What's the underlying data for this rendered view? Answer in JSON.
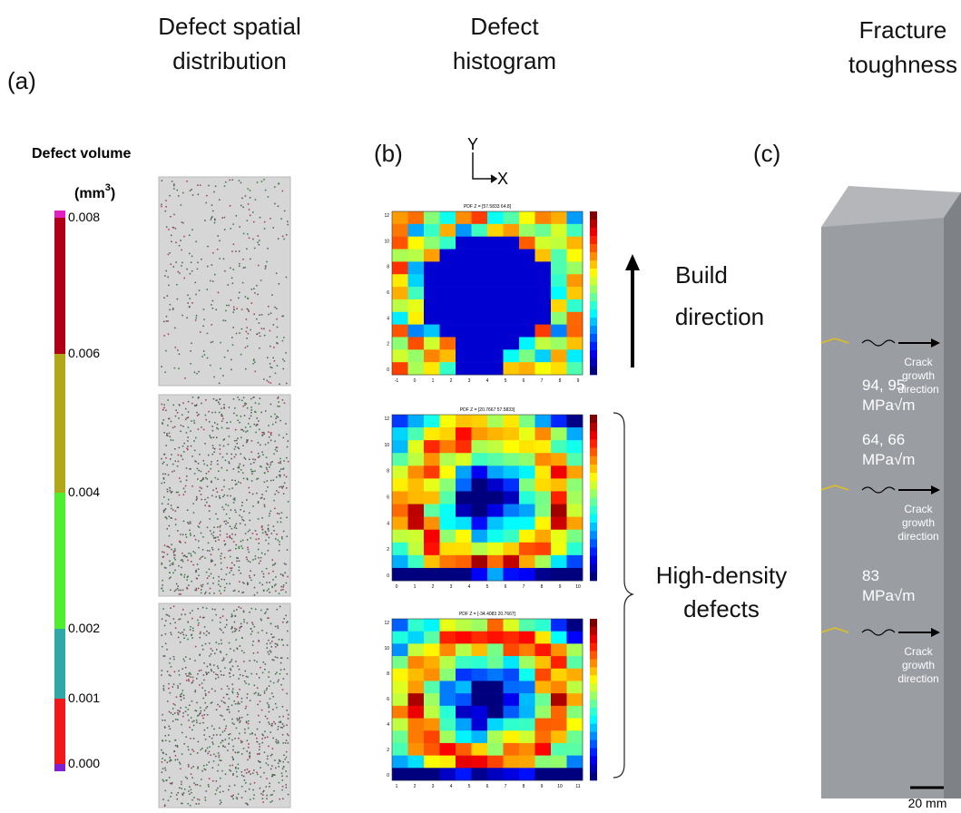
{
  "headers": {
    "a": {
      "line1": "Defect spatial",
      "line2": "distribution"
    },
    "b": {
      "line1": "Defect",
      "line2": "histogram"
    },
    "c": {
      "line1": "Fracture",
      "line2": "toughness"
    }
  },
  "panel_labels": {
    "a": "(a)",
    "b": "(b)",
    "c": "(c)"
  },
  "colorbar": {
    "title": "Defect volume",
    "unit": [
      "(mm",
      "3",
      ")"
    ],
    "labels": [
      "0.008",
      "0.006",
      "0.004",
      "0.002",
      "0.001",
      "0.000"
    ]
  },
  "axes_icon": {
    "y": "Y",
    "x": "X"
  },
  "histograms": [
    {
      "title": "PDF Z = [57.5833 64.8]",
      "xticks": [
        "-1",
        "0",
        "1",
        "2",
        "3",
        "4",
        "5",
        "6",
        "7",
        "8",
        "9"
      ],
      "yticks": [
        "0",
        "2",
        "4",
        "6",
        "8",
        "10",
        "12"
      ]
    },
    {
      "title": "PDF Z = [20.7667 57.5833]",
      "xticks": [
        "0",
        "1",
        "2",
        "3",
        "4",
        "5",
        "6",
        "7",
        "8",
        "9",
        "10"
      ],
      "yticks": [
        "0",
        "2",
        "4",
        "6",
        "8",
        "10",
        "12"
      ]
    },
    {
      "title": "PDF Z = [-34.4083 20.7667]",
      "xticks": [
        "1",
        "2",
        "3",
        "4",
        "5",
        "6",
        "7",
        "8",
        "9",
        "10",
        "11"
      ],
      "yticks": [
        "0",
        "2",
        "4",
        "6",
        "8",
        "10",
        "12"
      ]
    }
  ],
  "build_direction": {
    "line1": "Build",
    "line2": "direction"
  },
  "high_density": {
    "line1": "High-density",
    "line2": "defects"
  },
  "toughness": [
    {
      "value": "94, 95",
      "unit": "MPa√m",
      "note": [
        "Crack",
        "growth",
        "direction"
      ]
    },
    {
      "value": "64, 66",
      "unit": "MPa√m",
      "note": [
        "Crack",
        "growth",
        "direction"
      ]
    },
    {
      "value": "83",
      "unit": "MPa√m",
      "note": [
        "Crack",
        "growth",
        "direction"
      ]
    }
  ],
  "scale_bar": "20 mm"
}
